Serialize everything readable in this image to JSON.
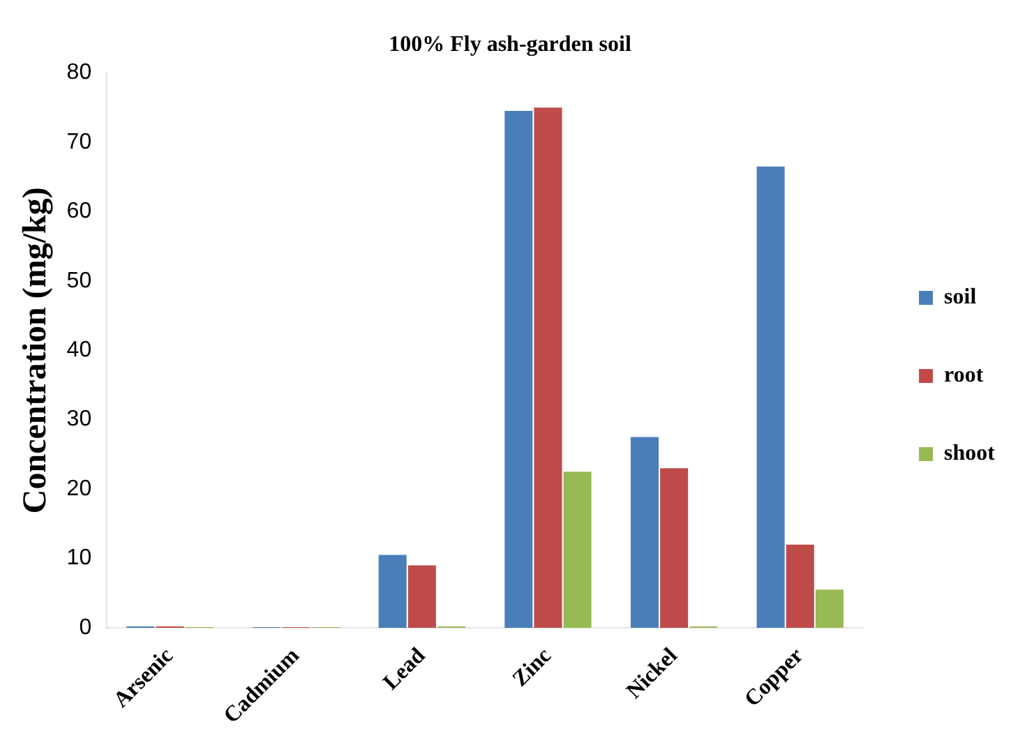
{
  "chart_data": {
    "type": "bar",
    "title": "100% Fly ash-garden soil",
    "ylabel": "Concentration (mg/kg)",
    "categories": [
      "Arsenic",
      "Cadmium",
      "Lead",
      "Zinc",
      "Nickel",
      "Copper"
    ],
    "series": [
      {
        "name": "soil",
        "color": "#4a7ebb",
        "values": [
          0.2,
          0.1,
          10.5,
          74.5,
          27.5,
          66.5
        ]
      },
      {
        "name": "root",
        "color": "#be4b48",
        "values": [
          0.2,
          0.1,
          9,
          75,
          23,
          12
        ]
      },
      {
        "name": "shoot",
        "color": "#98b954",
        "values": [
          0.1,
          0.1,
          0.2,
          22.5,
          0.2,
          5.5
        ]
      }
    ],
    "ylim": [
      0,
      80
    ],
    "yticks": [
      0,
      10,
      20,
      30,
      40,
      50,
      60,
      70,
      80
    ],
    "grid": false,
    "legend": "right"
  }
}
